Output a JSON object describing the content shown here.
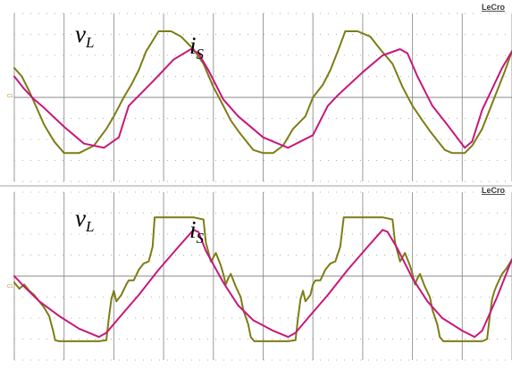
{
  "instrument": {
    "brand": "LeCro",
    "channel_marker": "C1"
  },
  "colors": {
    "voltage": "#7d7d15",
    "current": "#c8177a",
    "grid": "#9a9a9a"
  },
  "chart_data": [
    {
      "type": "line",
      "title": "",
      "xlabel": "",
      "ylabel": "",
      "x_units": "divisions",
      "y_units": "divisions",
      "xlim": [
        0,
        10
      ],
      "ylim": [
        -4,
        4
      ],
      "grid": true,
      "annotations": [
        {
          "base": "v",
          "sub": "L",
          "series": "v_L"
        },
        {
          "base": "i",
          "sub": "S",
          "series": "i_S"
        }
      ],
      "series": [
        {
          "name": "",
          "id": "v_L",
          "color": "#7d7d15",
          "x": [
            0,
            0.15,
            0.3,
            0.45,
            0.6,
            0.8,
            1.0,
            1.3,
            1.6,
            1.85,
            2.0,
            2.2,
            2.35,
            2.5,
            2.65,
            2.9,
            3.15,
            3.35,
            3.6,
            3.8,
            4.0,
            4.2,
            4.35,
            4.5,
            4.65,
            4.8,
            5.0,
            5.2,
            5.4,
            5.6,
            5.85,
            6.0,
            6.2,
            6.35,
            6.5,
            6.65,
            6.9,
            7.15,
            7.35,
            7.6,
            7.8,
            8.0,
            8.2,
            8.35,
            8.5,
            8.65,
            8.8,
            9.05,
            9.2,
            9.4,
            9.6,
            9.85,
            10.0
          ],
          "y": [
            1.4,
            1.0,
            0.3,
            -0.5,
            -1.3,
            -2.1,
            -2.65,
            -2.65,
            -2.3,
            -1.5,
            -0.9,
            0.0,
            0.6,
            1.3,
            2.2,
            3.15,
            3.15,
            2.9,
            2.3,
            1.6,
            0.5,
            -0.4,
            -1.1,
            -1.6,
            -2.05,
            -2.5,
            -2.65,
            -2.65,
            -2.3,
            -1.5,
            -0.9,
            0.0,
            0.6,
            1.3,
            2.2,
            3.15,
            3.15,
            2.9,
            2.3,
            1.6,
            0.5,
            -0.4,
            -1.1,
            -1.6,
            -2.05,
            -2.5,
            -2.65,
            -2.65,
            -2.3,
            -1.5,
            -0.3,
            1.2,
            2.2
          ]
        },
        {
          "name": "",
          "id": "i_S",
          "color": "#c8177a",
          "x": [
            0,
            0.2,
            0.4,
            0.6,
            1.0,
            1.4,
            1.8,
            2.1,
            2.3,
            2.8,
            3.2,
            3.55,
            3.7,
            3.9,
            4.2,
            4.5,
            5.0,
            5.5,
            6.0,
            6.3,
            6.5,
            7.0,
            7.4,
            7.75,
            7.9,
            8.1,
            8.4,
            8.7,
            9.05,
            9.2,
            9.4,
            9.8,
            10.0
          ],
          "y": [
            1.0,
            0.4,
            -0.1,
            -0.5,
            -1.4,
            -2.2,
            -2.4,
            -1.9,
            -0.4,
            0.8,
            1.8,
            2.3,
            2.1,
            1.3,
            -0.1,
            -0.9,
            -1.9,
            -2.4,
            -1.8,
            -0.4,
            0.1,
            1.2,
            2.0,
            2.3,
            2.1,
            1.0,
            -0.4,
            -1.3,
            -2.4,
            -2.1,
            -0.6,
            1.4,
            2.2
          ]
        }
      ]
    },
    {
      "type": "line",
      "title": "",
      "xlabel": "",
      "ylabel": "",
      "x_units": "divisions",
      "y_units": "divisions",
      "xlim": [
        0,
        10
      ],
      "ylim": [
        -4,
        4
      ],
      "grid": true,
      "annotations": [
        {
          "base": "v",
          "sub": "L",
          "series": "v_L"
        },
        {
          "base": "i",
          "sub": "S",
          "series": "i_S"
        }
      ],
      "series": [
        {
          "name": "",
          "id": "v_L",
          "color": "#7d7d15",
          "x": [
            0,
            0.1,
            0.2,
            0.3,
            0.4,
            0.5,
            0.6,
            0.7,
            0.78,
            0.82,
            0.9,
            1.3,
            1.7,
            1.85,
            1.9,
            1.95,
            2.0,
            2.05,
            2.15,
            2.25,
            2.3,
            2.4,
            2.5,
            2.6,
            2.7,
            2.78,
            2.82,
            3.2,
            3.6,
            3.8,
            3.85,
            3.95,
            4.05,
            4.15,
            4.2,
            4.25,
            4.3,
            4.35,
            4.45,
            4.55,
            4.6,
            4.7,
            4.75,
            4.82,
            5.15,
            5.5,
            5.65,
            5.7,
            5.75,
            5.8,
            5.85,
            5.95,
            6.0,
            6.05,
            6.15,
            6.25,
            6.35,
            6.45,
            6.55,
            6.62,
            6.68,
            7.0,
            7.4,
            7.6,
            7.65,
            7.75,
            7.85,
            7.95,
            8.0,
            8.05,
            8.1,
            8.15,
            8.25,
            8.35,
            8.4,
            8.5,
            8.55,
            8.62,
            9.0,
            9.4,
            9.5,
            9.55,
            9.6,
            9.65,
            9.7,
            9.8,
            9.9,
            10.0
          ],
          "y": [
            -0.3,
            -0.6,
            -0.4,
            -0.7,
            -0.9,
            -1.2,
            -1.5,
            -1.9,
            -2.6,
            -3.05,
            -3.1,
            -3.1,
            -3.1,
            -3.05,
            -2.0,
            -1.1,
            -0.7,
            -1.2,
            -0.9,
            -0.4,
            -0.2,
            -0.2,
            0.3,
            0.6,
            0.7,
            1.4,
            2.8,
            2.8,
            2.8,
            2.7,
            1.6,
            0.7,
            1.1,
            0.5,
            0.1,
            -0.4,
            -0.1,
            0.1,
            -0.5,
            -1.0,
            -1.6,
            -2.3,
            -2.9,
            -3.1,
            -3.1,
            -3.1,
            -3.05,
            -2.0,
            -1.1,
            -0.7,
            -1.2,
            -0.9,
            -0.4,
            -0.2,
            -0.2,
            0.3,
            0.6,
            0.7,
            1.4,
            2.8,
            2.8,
            2.8,
            2.8,
            2.7,
            1.6,
            0.7,
            1.1,
            0.5,
            0.1,
            -0.4,
            -0.1,
            0.1,
            -0.5,
            -1.0,
            -1.6,
            -2.3,
            -2.9,
            -3.1,
            -3.1,
            -3.1,
            -3.0,
            -2.0,
            -1.1,
            -0.7,
            -0.4,
            0.1,
            0.4,
            0.8
          ]
        },
        {
          "name": "",
          "id": "i_S",
          "color": "#c8177a",
          "x": [
            0,
            0.2,
            0.5,
            0.9,
            1.3,
            1.7,
            1.85,
            2.1,
            2.5,
            2.9,
            3.3,
            3.6,
            3.7,
            3.85,
            4.2,
            4.5,
            4.8,
            5.2,
            5.5,
            5.65,
            5.9,
            6.3,
            6.7,
            7.1,
            7.4,
            7.5,
            7.7,
            8.0,
            8.3,
            8.6,
            9.0,
            9.25,
            9.4,
            9.7,
            10.0
          ],
          "y": [
            0.0,
            -0.5,
            -1.2,
            -1.9,
            -2.5,
            -2.9,
            -2.7,
            -2.0,
            -0.9,
            0.3,
            1.4,
            2.2,
            2.1,
            1.2,
            -0.3,
            -1.4,
            -2.1,
            -2.6,
            -2.9,
            -2.7,
            -2.0,
            -0.9,
            0.3,
            1.4,
            2.2,
            2.1,
            1.3,
            -0.1,
            -1.2,
            -2.0,
            -2.6,
            -2.9,
            -2.6,
            -1.0,
            0.8
          ]
        }
      ]
    }
  ]
}
